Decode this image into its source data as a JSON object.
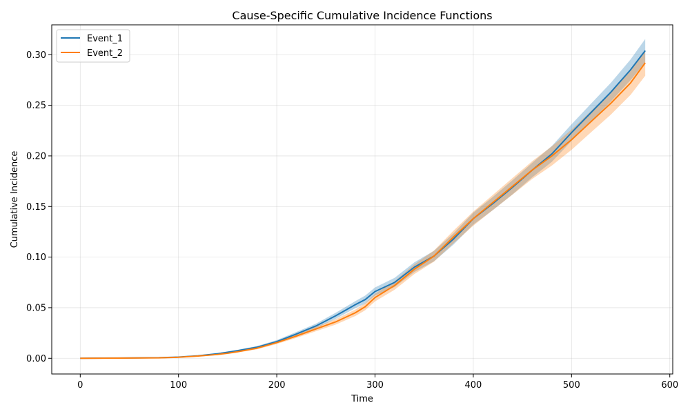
{
  "chart_data": {
    "type": "line",
    "title": "Cause-Specific Cumulative Incidence Functions",
    "xlabel": "Time",
    "ylabel": "Cumulative Incidence",
    "xlim": [
      -29,
      603
    ],
    "ylim": [
      -0.0155,
      0.3295
    ],
    "xticks": [
      0,
      100,
      200,
      300,
      400,
      500,
      600
    ],
    "yticks": [
      0.0,
      0.05,
      0.1,
      0.15,
      0.2,
      0.25,
      0.3
    ],
    "ytick_labels": [
      "0.00",
      "0.05",
      "0.10",
      "0.15",
      "0.20",
      "0.25",
      "0.30"
    ],
    "grid": true,
    "legend_position": "top-left",
    "series": [
      {
        "name": "Event_1",
        "color": "#1f77b4",
        "x": [
          0,
          40,
          80,
          100,
          120,
          140,
          150,
          160,
          180,
          200,
          220,
          240,
          260,
          280,
          290,
          300,
          320,
          340,
          360,
          380,
          400,
          420,
          440,
          460,
          480,
          500,
          520,
          540,
          560,
          575
        ],
        "y": [
          0.0,
          0.0003,
          0.0006,
          0.0012,
          0.0025,
          0.0045,
          0.006,
          0.0075,
          0.011,
          0.0165,
          0.024,
          0.032,
          0.042,
          0.053,
          0.058,
          0.066,
          0.075,
          0.09,
          0.101,
          0.118,
          0.138,
          0.153,
          0.169,
          0.186,
          0.202,
          0.223,
          0.243,
          0.263,
          0.285,
          0.304
        ],
        "ci_lower": [
          0.0,
          0.0002,
          0.0004,
          0.0009,
          0.002,
          0.0038,
          0.0052,
          0.0066,
          0.0099,
          0.015,
          0.022,
          0.0297,
          0.039,
          0.0495,
          0.054,
          0.062,
          0.0705,
          0.0852,
          0.0958,
          0.1125,
          0.132,
          0.1465,
          0.162,
          0.1788,
          0.1942,
          0.2148,
          0.2342,
          0.2538,
          0.2748,
          0.2925
        ],
        "ci_upper": [
          0.0,
          0.0004,
          0.0008,
          0.0015,
          0.003,
          0.0052,
          0.0068,
          0.0084,
          0.0121,
          0.018,
          0.026,
          0.0343,
          0.045,
          0.0565,
          0.062,
          0.07,
          0.0795,
          0.0948,
          0.1062,
          0.1235,
          0.144,
          0.1595,
          0.176,
          0.1932,
          0.2098,
          0.2312,
          0.2518,
          0.2722,
          0.2952,
          0.3155
        ]
      },
      {
        "name": "Event_2",
        "color": "#ff7f0e",
        "x": [
          0,
          40,
          80,
          100,
          120,
          140,
          150,
          160,
          180,
          200,
          220,
          240,
          260,
          280,
          290,
          300,
          320,
          340,
          360,
          380,
          400,
          420,
          440,
          460,
          480,
          500,
          520,
          540,
          560,
          575
        ],
        "y": [
          0.0,
          0.0002,
          0.0004,
          0.001,
          0.0022,
          0.0038,
          0.005,
          0.0065,
          0.01,
          0.0155,
          0.022,
          0.029,
          0.036,
          0.045,
          0.051,
          0.06,
          0.072,
          0.088,
          0.101,
          0.12,
          0.138,
          0.154,
          0.17,
          0.186,
          0.2,
          0.216,
          0.234,
          0.252,
          0.272,
          0.292
        ],
        "ci_lower": [
          0.0,
          0.0001,
          0.0003,
          0.0007,
          0.0017,
          0.0031,
          0.0042,
          0.0056,
          0.0089,
          0.0141,
          0.0202,
          0.0268,
          0.0333,
          0.0418,
          0.0475,
          0.0562,
          0.0678,
          0.0832,
          0.0955,
          0.1138,
          0.131,
          0.1465,
          0.1618,
          0.1772,
          0.1905,
          0.206,
          0.2235,
          0.2408,
          0.2602,
          0.2792
        ],
        "ci_upper": [
          0.0,
          0.0003,
          0.0005,
          0.0013,
          0.0027,
          0.0045,
          0.0058,
          0.0074,
          0.0111,
          0.0169,
          0.0238,
          0.0312,
          0.0387,
          0.0482,
          0.0545,
          0.0638,
          0.0762,
          0.0928,
          0.1065,
          0.1262,
          0.145,
          0.1615,
          0.1782,
          0.1948,
          0.2095,
          0.226,
          0.2445,
          0.2632,
          0.2838,
          0.3048
        ]
      }
    ]
  }
}
